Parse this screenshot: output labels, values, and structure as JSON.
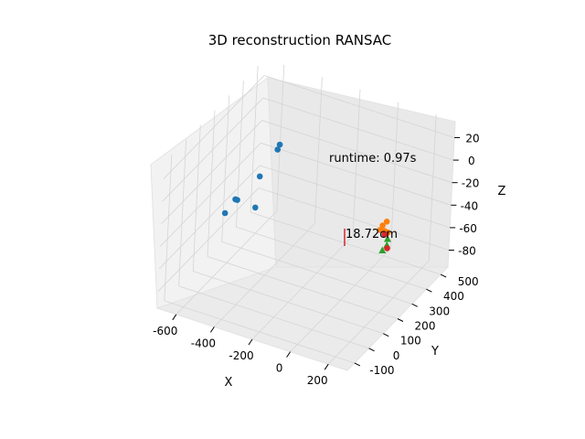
{
  "chart_data": {
    "type": "scatter",
    "projection": "3d",
    "title": "3D reconstruction RANSAC",
    "xlabel": "X",
    "ylabel": "Y",
    "zlabel": "Z",
    "xlim": [
      -700,
      300
    ],
    "ylim": [
      -150,
      550
    ],
    "zlim": [
      -95,
      35
    ],
    "xticks": [
      -600,
      -400,
      -200,
      0,
      200
    ],
    "yticks": [
      -100,
      0,
      100,
      200,
      300,
      400,
      500
    ],
    "zticks": [
      20,
      0,
      -20,
      -40,
      -60,
      -80
    ],
    "grid": true,
    "annotations": [
      {
        "text": "runtime: 0.97s",
        "x": 0,
        "y": 380,
        "z": -5
      },
      {
        "text": "18.72cm",
        "x": 30,
        "y": 480,
        "z": -82
      }
    ],
    "series": [
      {
        "color": "#1f77b4",
        "marker": "circle",
        "points": [
          {
            "x": -550,
            "y": 100,
            "z": -35
          },
          {
            "x": -500,
            "y": 100,
            "z": -20
          },
          {
            "x": -490,
            "y": 100,
            "z": -20
          },
          {
            "x": -450,
            "y": 200,
            "z": -10
          },
          {
            "x": -400,
            "y": 250,
            "z": 10
          },
          {
            "x": -390,
            "y": 250,
            "z": 15
          },
          {
            "x": -430,
            "y": 150,
            "z": -30
          }
        ]
      },
      {
        "color": "#ff7f0e",
        "marker": "circle",
        "points": [
          {
            "x": 10,
            "y": 450,
            "z": -65
          },
          {
            "x": 15,
            "y": 460,
            "z": -62
          },
          {
            "x": 20,
            "y": 470,
            "z": -68
          },
          {
            "x": 25,
            "y": 475,
            "z": -60
          },
          {
            "x": 30,
            "y": 480,
            "z": -70
          }
        ]
      },
      {
        "color": "#2ca02c",
        "marker": "triangle",
        "points": [
          {
            "x": 20,
            "y": 460,
            "z": -84
          },
          {
            "x": 35,
            "y": 470,
            "z": -80
          },
          {
            "x": 30,
            "y": 480,
            "z": -76
          }
        ]
      },
      {
        "color": "#d62728",
        "marker": "circle",
        "points": [
          {
            "x": 25,
            "y": 465,
            "z": -70
          },
          {
            "x": 30,
            "y": 480,
            "z": -84
          }
        ]
      }
    ]
  }
}
